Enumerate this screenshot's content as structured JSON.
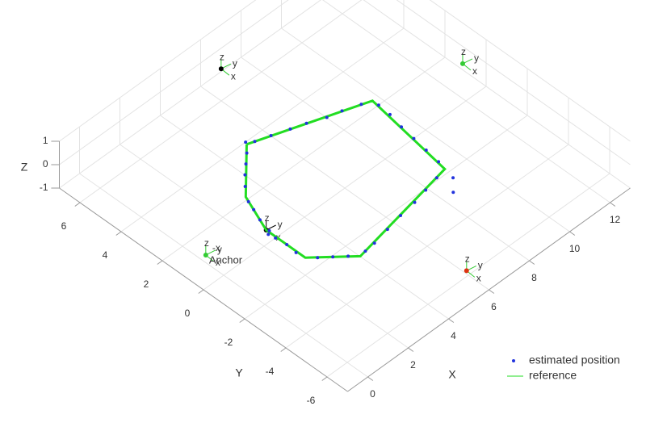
{
  "chart_data": {
    "type": "scatter3d",
    "xlabel": "X",
    "ylabel": "Y",
    "zlabel": "Z",
    "xlim": [
      -1,
      13
    ],
    "ylim": [
      -7,
      7
    ],
    "zlim": [
      -1,
      1
    ],
    "xticks": [
      0,
      2,
      4,
      6,
      8,
      10,
      12
    ],
    "yticks": [
      -6,
      -4,
      -2,
      0,
      2,
      4,
      6
    ],
    "zticks": [
      -1,
      0,
      1
    ],
    "grid": true,
    "legend": "lower right",
    "series": [
      {
        "name": "estimated position",
        "color": "#2233dd",
        "style": "points",
        "x": [
          4.6,
          5.2,
          5.9,
          6.5,
          7.2,
          7.8,
          8.5,
          8.9,
          8.85,
          8.7,
          8.6,
          8.5,
          8.4,
          8.2,
          7.7,
          7.8,
          7.1,
          6.4,
          5.6,
          4.8,
          4.0,
          3.5,
          2.9,
          2.5,
          2.1,
          1.75,
          1.8,
          1.75,
          1.85,
          1.7,
          2.0,
          2.2,
          2.35,
          2.8,
          3.2,
          3.6,
          4.0,
          4.35
        ],
        "y": [
          3.0,
          2.8,
          2.55,
          2.35,
          2.05,
          1.9,
          1.65,
          1.2,
          0.6,
          -0.1,
          -0.8,
          -1.5,
          -2.2,
          -3.1,
          -3.6,
          -2.7,
          -2.85,
          -3.0,
          -3.1,
          -3.25,
          -3.4,
          -3.45,
          -3.2,
          -2.85,
          -2.5,
          -1.8,
          -1.3,
          -0.8,
          -0.4,
          -0.5,
          0.2,
          0.7,
          1.1,
          1.7,
          2.1,
          2.45,
          2.8,
          3.2
        ],
        "z": [
          0,
          0,
          0,
          0,
          0,
          0,
          0,
          0,
          0,
          0,
          0,
          0,
          0,
          0,
          0,
          0,
          0,
          0,
          0,
          0,
          0,
          0,
          0,
          0,
          0,
          0,
          0,
          0,
          0,
          0,
          0,
          0,
          0,
          0,
          0,
          0,
          0,
          0
        ]
      },
      {
        "name": "reference",
        "color": "#22dd22",
        "style": "line",
        "x": [
          4.3,
          8.9,
          8.3,
          3.2,
          1.8,
          1.8,
          2.45,
          4.3
        ],
        "y": [
          3.1,
          1.5,
          -2.6,
          -3.5,
          -2.2,
          -0.3,
          1.33,
          3.1
        ],
        "z": [
          0,
          0,
          0,
          0,
          0,
          0,
          0,
          0
        ]
      }
    ],
    "anchors": {
      "x": [
        6.3,
        12.4,
        5.3,
        -0.55,
        1.8
      ],
      "y": [
        6.3,
        0.55,
        -6.6,
        0.33,
        -0.3
      ],
      "z": [
        0,
        0,
        0,
        0,
        0
      ],
      "colors": [
        "#000000",
        "#33cc33",
        "#dd3311",
        "#33cc33",
        "#000000"
      ]
    },
    "triad_labels": [
      "x",
      "y",
      "z",
      "-x"
    ],
    "annotations": [
      "Anchor"
    ]
  }
}
